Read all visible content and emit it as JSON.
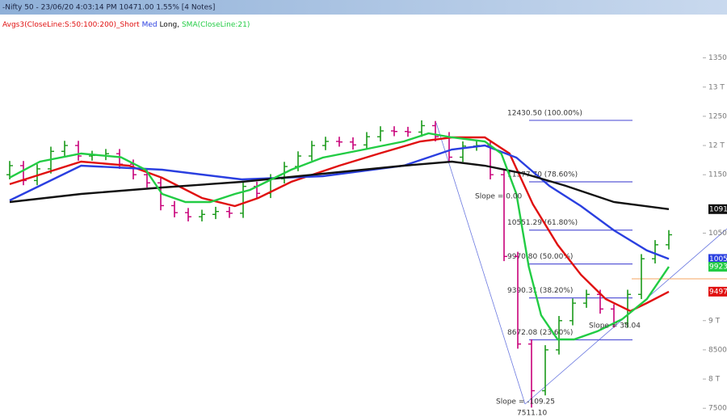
{
  "header": {
    "title": "-Nifty 50 - 23/06/20 4:03:14 PM 10471.00 1.55% [4 Notes]",
    "legend_prefix": "Avgs3(CloseLine:S:50:100:200)_"
  },
  "chart_data": {
    "type": "candlestick",
    "up_color": "#1a9a1a",
    "down_color": "#c8007a",
    "open": [
      11500,
      11655,
      11400,
      11600,
      11900,
      12000,
      11820,
      11830,
      11860,
      11680,
      11500,
      11360,
      10970,
      10850,
      10780,
      10820,
      10870,
      10840,
      11300,
      11180,
      11430,
      11640,
      11820,
      12000,
      12070,
      12060,
      12010,
      12150,
      12250,
      12240,
      12230,
      12340,
      12150,
      11800,
      11990,
      12000,
      11500,
      10100,
      8600,
      7800,
      8500,
      9000,
      9300,
      9450,
      9200,
      8960,
      9450,
      10060,
      10300
    ],
    "high": [
      11735,
      11735,
      11680,
      11980,
      12080,
      12080,
      11910,
      11940,
      11940,
      11760,
      11580,
      11440,
      11050,
      10930,
      10900,
      10950,
      10950,
      11380,
      11380,
      11510,
      11720,
      11900,
      12080,
      12150,
      12150,
      12140,
      12230,
      12330,
      12330,
      12320,
      12430.5,
      12420,
      12230,
      12070,
      12080,
      12080,
      11580,
      10180,
      8680,
      8580,
      9080,
      9380,
      9530,
      9530,
      9280,
      9530,
      10140,
      10380,
      10551
    ],
    "low": [
      11420,
      11320,
      11320,
      11520,
      11820,
      11740,
      11740,
      11750,
      11600,
      11420,
      11280,
      10890,
      10770,
      10700,
      10700,
      10740,
      10760,
      10760,
      11100,
      11100,
      11350,
      11560,
      11740,
      11920,
      11980,
      11930,
      11930,
      12070,
      12160,
      12150,
      12150,
      12070,
      11720,
      11720,
      11910,
      11420,
      10020,
      8520,
      7511.1,
      7720,
      8420,
      8920,
      9220,
      9120,
      8880,
      8880,
      9370,
      9980,
      10220
    ],
    "close": [
      11655,
      11400,
      11600,
      11900,
      12000,
      11820,
      11830,
      11860,
      11680,
      11500,
      11360,
      10970,
      10850,
      10780,
      10820,
      10870,
      10840,
      11300,
      11180,
      11430,
      11640,
      11820,
      12000,
      12070,
      12060,
      12010,
      12150,
      12250,
      12240,
      12230,
      12340,
      12150,
      11800,
      11990,
      12000,
      11500,
      10100,
      8600,
      7800,
      8500,
      9000,
      9300,
      9450,
      9200,
      8960,
      9450,
      10060,
      10300,
      10471
    ],
    "series": [
      {
        "name": "Short",
        "color": "#e01010",
        "x": [
          0,
          5.2,
          8.7,
          11.1,
          14,
          16.4,
          18.1,
          20.5,
          24,
          26.9,
          29.9,
          32.2,
          34.6,
          36.4,
          38.1,
          39.9,
          41.6,
          43.4,
          45.2,
          46.4,
          48
        ],
        "values": [
          11337,
          11724,
          11655,
          11447,
          11101,
          10963,
          11101,
          11378,
          11655,
          11862,
          12070,
          12139,
          12139,
          11862,
          10995,
          10300,
          9786,
          9371,
          9164,
          9302,
          9497
        ]
      },
      {
        "name": "Med",
        "color": "#2a3fe0",
        "x": [
          0,
          5.2,
          11.1,
          16.9,
          22.8,
          28.7,
          32.2,
          34.6,
          36.9,
          39.3,
          41.6,
          44,
          46.4,
          48
        ],
        "values": [
          11060,
          11655,
          11585,
          11420,
          11475,
          11655,
          11931,
          12000,
          11793,
          11309,
          10963,
          10548,
          10202,
          10057
        ]
      },
      {
        "name": "Long,",
        "color": "#111111",
        "x": [
          0,
          5.2,
          11.1,
          16.9,
          22.8,
          28.7,
          32.2,
          34.6,
          37.5,
          40.5,
          44,
          48
        ],
        "values": [
          11032,
          11170,
          11281,
          11378,
          11516,
          11655,
          11724,
          11655,
          11516,
          11309,
          11032,
          10910
        ]
      },
      {
        "name": "SMA(CloseLine:21)",
        "color": "#22cc44",
        "x": [
          0,
          2.2,
          5.2,
          8.1,
          9.9,
          11.1,
          12.8,
          14.6,
          16.4,
          17.5,
          18.7,
          20.5,
          22.8,
          25.8,
          28.7,
          30.5,
          32.2,
          34.6,
          35.8,
          36.9,
          37.8,
          38.7,
          39.9,
          41.1,
          42.8,
          44.6,
          46.4,
          48
        ],
        "values": [
          11450,
          11724,
          11862,
          11800,
          11585,
          11170,
          11032,
          11032,
          11170,
          11240,
          11378,
          11585,
          11793,
          11931,
          12070,
          12208,
          12139,
          12070,
          11862,
          11170,
          9925,
          9094,
          8679,
          8679,
          8818,
          9025,
          9371,
          9923
        ]
      }
    ],
    "fib_levels": [
      {
        "value": 12430.5,
        "label": "12430.50 (100.00%)"
      },
      {
        "value": 11377.7,
        "label": "11377.70 (78.60%)"
      },
      {
        "value": 10551.29,
        "label": "10551.29 (61.80%)"
      },
      {
        "value": 9970.8,
        "label": "9970.80 (50.00%)"
      },
      {
        "value": 9390.31,
        "label": "9390.31 (38.20%)"
      },
      {
        "value": 8672.08,
        "label": "8672.08 (23.60%)"
      }
    ],
    "fib_color": "#5a5ad8",
    "annotations": [
      "Slope = 0.00",
      "Slope = 38.04",
      "Slope = -109.25",
      "7511.10"
    ],
    "ylim": [
      7350,
      13800
    ],
    "yticks": [
      13500,
      {
        "value": 13000,
        "label": "13 T"
      },
      12500,
      {
        "value": 12000,
        "label": "12 T"
      },
      11500,
      10500,
      {
        "value": 9000,
        "label": "9 T"
      },
      8500,
      {
        "value": 8000,
        "label": "8 T"
      },
      7500
    ]
  }
}
